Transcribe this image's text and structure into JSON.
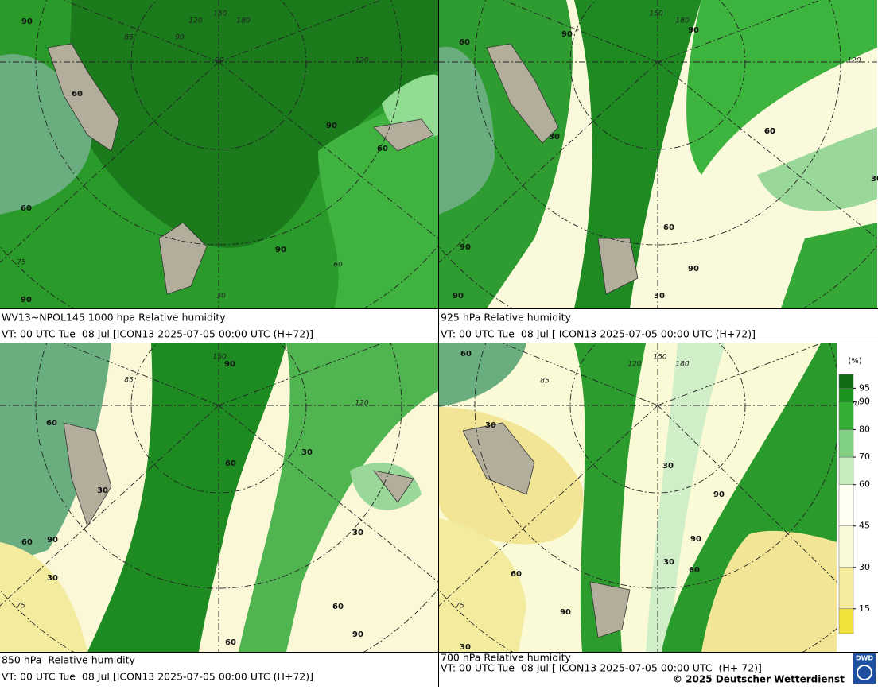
{
  "panels": [
    {
      "caption": "WV13~NPOL145 1000 hpa Relative humidity",
      "valid_time": "VT: 00 UTC Tue  08 Jul [ICON13 2025-07-05 00:00 UTC (H+72)]",
      "labels": [
        "90",
        "60",
        "90",
        "60",
        "60",
        "90",
        "90",
        "120",
        "150",
        "180",
        "90",
        "120",
        "85",
        "90",
        "75",
        "60",
        "30"
      ]
    },
    {
      "caption": "925 hPa Relative humidity",
      "valid_time": "VT: 00 UTC Tue  08 Jul [ ICON13 2025-07-05 00:00 UTC (H+72)]",
      "labels": [
        "60",
        "90",
        "90",
        "60",
        "30",
        "60",
        "60",
        "90",
        "90",
        "90",
        "30",
        "120",
        "150",
        "180",
        "30"
      ]
    },
    {
      "caption": "850 hPa  Relative humidity",
      "valid_time": "VT: 00 UTC Tue  08 Jul [ICON13 2025-07-05 00:00 UTC (H+72)]",
      "labels": [
        "60",
        "90",
        "30",
        "60",
        "30",
        "30",
        "60",
        "90",
        "30",
        "60",
        "90",
        "150",
        "120",
        "85",
        "75",
        "60"
      ]
    },
    {
      "caption": "700 hPa Relative humidity",
      "valid_time": "VT: 00 UTC Tue  08 Jul [ ICON13 2025-07-05 00:00 UTC  (H+ 72)]",
      "labels": [
        "60",
        "30",
        "30",
        "90",
        "90",
        "60",
        "30",
        "60",
        "90",
        "30",
        "120",
        "150",
        "180",
        "85",
        "120",
        "75"
      ]
    }
  ],
  "legend": {
    "unit": "(%)",
    "lim": [
      6,
      100
    ],
    "levels": [
      15,
      30,
      45,
      60,
      70,
      80,
      90,
      95
    ],
    "colors": [
      "#f2e23a",
      "#f3ec9e",
      "#fafad6",
      "#fffff2",
      "#c8ecc0",
      "#82d182",
      "#34b034",
      "#1e9420",
      "#106c14"
    ]
  },
  "logo": "DWD",
  "copyright": "© 2025 Deutscher Wetterdienst"
}
